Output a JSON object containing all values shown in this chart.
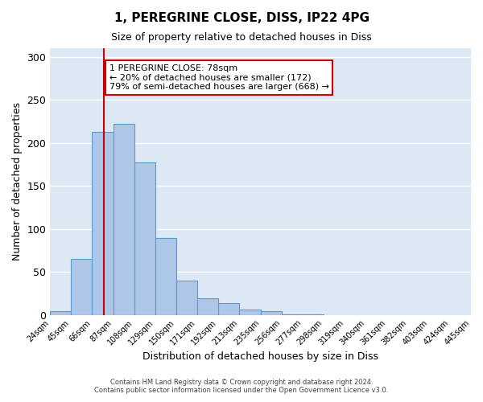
{
  "title": "1, PEREGRINE CLOSE, DISS, IP22 4PG",
  "subtitle": "Size of property relative to detached houses in Diss",
  "xlabel": "Distribution of detached houses by size in Diss",
  "ylabel": "Number of detached properties",
  "bar_color": "#aec6e8",
  "bar_edge_color": "#5b9bd5",
  "background_color": "#dce9f5",
  "grid_color": "#ffffff",
  "bin_edges": [
    24,
    45,
    66,
    87,
    108,
    129,
    150,
    171,
    192,
    213,
    235,
    256,
    277,
    298,
    319,
    340,
    361,
    382,
    403,
    424,
    445
  ],
  "bar_heights": [
    4,
    65,
    213,
    222,
    177,
    89,
    40,
    19,
    14,
    6,
    4,
    1,
    1,
    0,
    0,
    0,
    0,
    0,
    0,
    0,
    1
  ],
  "tick_labels": [
    "24sqm",
    "45sqm",
    "66sqm",
    "87sqm",
    "108sqm",
    "129sqm",
    "150sqm",
    "171sqm",
    "192sqm",
    "213sqm",
    "235sqm",
    "256sqm",
    "277sqm",
    "298sqm",
    "319sqm",
    "340sqm",
    "361sqm",
    "382sqm",
    "403sqm",
    "424sqm",
    "445sqm"
  ],
  "vline_x": 78,
  "vline_color": "#cc0000",
  "ylim": [
    0,
    310
  ],
  "yticks": [
    0,
    50,
    100,
    150,
    200,
    250,
    300
  ],
  "annotation_title": "1 PEREGRINE CLOSE: 78sqm",
  "annotation_line1": "← 20% of detached houses are smaller (172)",
  "annotation_line2": "79% of semi-detached houses are larger (668) →",
  "annotation_box_color": "#ffffff",
  "annotation_box_edge": "#cc0000",
  "footer_line1": "Contains HM Land Registry data © Crown copyright and database right 2024.",
  "footer_line2": "Contains public sector information licensed under the Open Government Licence v3.0."
}
